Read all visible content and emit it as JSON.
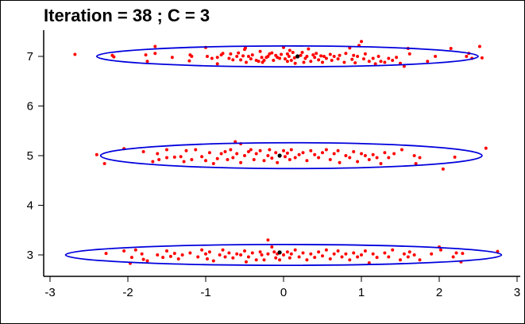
{
  "chart_data": {
    "type": "scatter",
    "title": "Iteration =  38 ; C =  3",
    "xlabel": "",
    "ylabel": "",
    "xlim": [
      -3,
      3
    ],
    "ylim": [
      2.6,
      7.5
    ],
    "x_ticks": [
      "-3",
      "-2",
      "-1",
      "0",
      "1",
      "2",
      "3"
    ],
    "y_ticks": [
      "3",
      "4",
      "5",
      "6",
      "7"
    ],
    "grid": false,
    "colors": {
      "points": "#ff0000",
      "centers": "#000000",
      "ellipses": "#0000dd",
      "frame": "#000000"
    },
    "clusters": [
      {
        "center": [
          0.18,
          7.0
        ],
        "ellipse": {
          "cx": 0.05,
          "cy": 7.0,
          "rx": 2.45,
          "ry": 0.21
        },
        "points": [
          [
            -2.68,
            7.04
          ],
          [
            -2.2,
            7.02
          ],
          [
            -2.18,
            6.99
          ],
          [
            -1.77,
            7.03
          ],
          [
            -1.75,
            6.9
          ],
          [
            -1.65,
            7.2
          ],
          [
            -1.65,
            7.06
          ],
          [
            -1.43,
            6.98
          ],
          [
            -1.21,
            6.91
          ],
          [
            -1.2,
            7.03
          ],
          [
            -1.18,
            7.0
          ],
          [
            -1.0,
            7.18
          ],
          [
            -0.98,
            7.0
          ],
          [
            -0.92,
            6.96
          ],
          [
            -0.85,
            6.98
          ],
          [
            -0.85,
            6.85
          ],
          [
            -0.8,
            7.03
          ],
          [
            -0.78,
            7.06
          ],
          [
            -0.7,
            6.96
          ],
          [
            -0.68,
            7.05
          ],
          [
            -0.65,
            6.93
          ],
          [
            -0.6,
            7.0
          ],
          [
            -0.58,
            7.07
          ],
          [
            -0.55,
            6.93
          ],
          [
            -0.52,
            7.01
          ],
          [
            -0.5,
            7.14
          ],
          [
            -0.49,
            7.17
          ],
          [
            -0.48,
            6.88
          ],
          [
            -0.45,
            7.0
          ],
          [
            -0.42,
            6.95
          ],
          [
            -0.4,
            7.03
          ],
          [
            -0.35,
            6.92
          ],
          [
            -0.32,
            6.9
          ],
          [
            -0.3,
            7.1
          ],
          [
            -0.28,
            6.98
          ],
          [
            -0.27,
            6.88
          ],
          [
            -0.25,
            6.92
          ],
          [
            -0.22,
            6.98
          ],
          [
            -0.2,
            7.0
          ],
          [
            -0.18,
            7.05
          ],
          [
            -0.15,
            7.07
          ],
          [
            -0.13,
            6.92
          ],
          [
            -0.1,
            7.02
          ],
          [
            -0.08,
            6.98
          ],
          [
            -0.05,
            6.96
          ],
          [
            -0.03,
            7.04
          ],
          [
            0.0,
            7.18
          ],
          [
            0.02,
            6.95
          ],
          [
            0.05,
            7.05
          ],
          [
            0.05,
            6.9
          ],
          [
            0.07,
            7.0
          ],
          [
            0.08,
            7.12
          ],
          [
            0.1,
            6.92
          ],
          [
            0.12,
            7.08
          ],
          [
            0.14,
            6.97
          ],
          [
            0.15,
            6.86
          ],
          [
            0.22,
            7.02
          ],
          [
            0.24,
            7.08
          ],
          [
            0.26,
            6.88
          ],
          [
            0.28,
            6.96
          ],
          [
            0.3,
            7.0
          ],
          [
            0.32,
            7.15
          ],
          [
            0.35,
            6.9
          ],
          [
            0.38,
            7.03
          ],
          [
            0.4,
            6.98
          ],
          [
            0.42,
            7.06
          ],
          [
            0.45,
            6.93
          ],
          [
            0.48,
            7.01
          ],
          [
            0.5,
            6.88
          ],
          [
            0.52,
            7.0
          ],
          [
            0.55,
            6.96
          ],
          [
            0.6,
            7.04
          ],
          [
            0.62,
            6.92
          ],
          [
            0.65,
            7.0
          ],
          [
            0.7,
            6.95
          ],
          [
            0.72,
            7.02
          ],
          [
            0.78,
            6.88
          ],
          [
            0.8,
            7.06
          ],
          [
            0.85,
            7.17
          ],
          [
            0.88,
            6.94
          ],
          [
            0.9,
            7.02
          ],
          [
            0.92,
            6.87
          ],
          [
            0.95,
            7.0
          ],
          [
            0.97,
            7.22
          ],
          [
            1.0,
            7.3
          ],
          [
            1.03,
            6.95
          ],
          [
            1.05,
            7.05
          ],
          [
            1.1,
            6.9
          ],
          [
            1.15,
            6.96
          ],
          [
            1.18,
            6.85
          ],
          [
            1.22,
            7.0
          ],
          [
            1.25,
            6.9
          ],
          [
            1.3,
            6.88
          ],
          [
            1.35,
            6.96
          ],
          [
            1.4,
            6.92
          ],
          [
            1.45,
            6.98
          ],
          [
            1.5,
            6.86
          ],
          [
            1.55,
            6.8
          ],
          [
            1.6,
            7.16
          ],
          [
            1.62,
            7.05
          ],
          [
            1.85,
            6.9
          ],
          [
            1.95,
            7.0
          ],
          [
            2.15,
            7.16
          ],
          [
            2.35,
            7.0
          ],
          [
            2.38,
            7.06
          ],
          [
            2.42,
            6.96
          ],
          [
            2.52,
            7.2
          ],
          [
            2.55,
            6.97
          ]
        ]
      },
      {
        "center": [
          -0.05,
          5.0
        ],
        "ellipse": {
          "cx": 0.1,
          "cy": 5.0,
          "rx": 2.45,
          "ry": 0.26
        },
        "points": [
          [
            -2.4,
            5.02
          ],
          [
            -2.3,
            4.84
          ],
          [
            -2.05,
            5.14
          ],
          [
            -1.8,
            5.08
          ],
          [
            -1.68,
            4.88
          ],
          [
            -1.62,
            5.04
          ],
          [
            -1.6,
            4.92
          ],
          [
            -1.5,
            5.12
          ],
          [
            -1.5,
            4.96
          ],
          [
            -1.4,
            4.97
          ],
          [
            -1.32,
            4.98
          ],
          [
            -1.28,
            4.88
          ],
          [
            -1.25,
            5.1
          ],
          [
            -1.18,
            4.92
          ],
          [
            -1.13,
            5.12
          ],
          [
            -1.05,
            4.98
          ],
          [
            -1.0,
            4.9
          ],
          [
            -0.95,
            5.06
          ],
          [
            -0.9,
            4.84
          ],
          [
            -0.85,
            4.94
          ],
          [
            -0.8,
            5.04
          ],
          [
            -0.75,
            5.08
          ],
          [
            -0.72,
            4.92
          ],
          [
            -0.68,
            5.12
          ],
          [
            -0.65,
            4.96
          ],
          [
            -0.6,
            5.04
          ],
          [
            -0.55,
            4.86
          ],
          [
            -0.5,
            5.0
          ],
          [
            -0.45,
            5.08
          ],
          [
            -0.42,
            5.12
          ],
          [
            -0.38,
            4.92
          ],
          [
            -0.35,
            5.04
          ],
          [
            -0.3,
            5.1
          ],
          [
            -0.25,
            4.9
          ],
          [
            -0.2,
            5.0
          ],
          [
            -0.18,
            5.12
          ],
          [
            -0.15,
            4.95
          ],
          [
            -0.1,
            5.06
          ],
          [
            -0.08,
            4.86
          ],
          [
            0.0,
            5.1
          ],
          [
            0.02,
            4.98
          ],
          [
            0.05,
            5.05
          ],
          [
            0.08,
            4.92
          ],
          [
            0.1,
            5.12
          ],
          [
            0.15,
            4.96
          ],
          [
            0.2,
            5.02
          ],
          [
            0.25,
            5.06
          ],
          [
            0.3,
            4.9
          ],
          [
            0.35,
            5.1
          ],
          [
            0.4,
            5.02
          ],
          [
            0.45,
            4.96
          ],
          [
            0.5,
            5.06
          ],
          [
            0.55,
            5.12
          ],
          [
            0.6,
            4.92
          ],
          [
            0.65,
            5.04
          ],
          [
            0.7,
            5.1
          ],
          [
            0.72,
            4.86
          ],
          [
            0.8,
            5.0
          ],
          [
            0.85,
            4.96
          ],
          [
            0.9,
            5.08
          ],
          [
            0.95,
            4.88
          ],
          [
            1.0,
            5.04
          ],
          [
            1.05,
            5.0
          ],
          [
            1.1,
            4.92
          ],
          [
            1.15,
            5.02
          ],
          [
            1.2,
            4.96
          ],
          [
            1.25,
            4.84
          ],
          [
            1.3,
            5.06
          ],
          [
            1.35,
            4.96
          ],
          [
            1.42,
            5.04
          ],
          [
            1.52,
            5.12
          ],
          [
            1.68,
            5.0
          ],
          [
            1.75,
            4.96
          ],
          [
            1.7,
            4.84
          ],
          [
            2.05,
            4.73
          ],
          [
            2.2,
            4.97
          ],
          [
            2.6,
            5.15
          ],
          [
            -0.62,
            5.28
          ],
          [
            -0.55,
            5.24
          ]
        ]
      },
      {
        "center": [
          -0.05,
          3.05
        ],
        "ellipse": {
          "cx": 0.0,
          "cy": 3.0,
          "rx": 2.8,
          "ry": 0.21
        },
        "points": [
          [
            -2.28,
            3.03
          ],
          [
            -2.05,
            3.08
          ],
          [
            -1.97,
            2.83
          ],
          [
            -1.95,
            2.95
          ],
          [
            -1.9,
            3.1
          ],
          [
            -1.82,
            3.02
          ],
          [
            -1.8,
            2.91
          ],
          [
            -1.75,
            2.88
          ],
          [
            -1.62,
            3.0
          ],
          [
            -1.55,
            2.95
          ],
          [
            -1.5,
            3.08
          ],
          [
            -1.45,
            2.97
          ],
          [
            -1.4,
            3.03
          ],
          [
            -1.35,
            2.92
          ],
          [
            -1.3,
            3.0
          ],
          [
            -1.2,
            3.04
          ],
          [
            -1.1,
            2.96
          ],
          [
            -1.05,
            3.1
          ],
          [
            -1.0,
            3.02
          ],
          [
            -0.98,
            2.92
          ],
          [
            -0.95,
            3.06
          ],
          [
            -0.9,
            2.88
          ],
          [
            -0.82,
            3.0
          ],
          [
            -0.78,
            3.1
          ],
          [
            -0.75,
            2.96
          ],
          [
            -0.7,
            3.04
          ],
          [
            -0.65,
            2.94
          ],
          [
            -0.6,
            3.02
          ],
          [
            -0.55,
            3.0
          ],
          [
            -0.5,
            3.08
          ],
          [
            -0.48,
            2.86
          ],
          [
            -0.45,
            2.96
          ],
          [
            -0.4,
            3.04
          ],
          [
            -0.35,
            2.9
          ],
          [
            -0.3,
            3.06
          ],
          [
            -0.28,
            3.0
          ],
          [
            -0.25,
            2.9
          ],
          [
            -0.2,
            3.02
          ],
          [
            -0.15,
            3.16
          ],
          [
            -0.12,
            3.06
          ],
          [
            -0.1,
            2.94
          ],
          [
            -0.08,
            3.02
          ],
          [
            -0.05,
            2.9
          ],
          [
            0.0,
            3.0
          ],
          [
            0.05,
            3.06
          ],
          [
            0.08,
            2.94
          ],
          [
            0.1,
            3.02
          ],
          [
            0.15,
            3.1
          ],
          [
            0.2,
            2.96
          ],
          [
            0.25,
            3.04
          ],
          [
            0.3,
            2.9
          ],
          [
            0.35,
            3.02
          ],
          [
            0.4,
            2.95
          ],
          [
            0.45,
            3.06
          ],
          [
            0.5,
            2.98
          ],
          [
            0.55,
            3.1
          ],
          [
            0.6,
            2.92
          ],
          [
            0.65,
            3.02
          ],
          [
            0.7,
            3.08
          ],
          [
            0.75,
            2.96
          ],
          [
            0.8,
            3.02
          ],
          [
            0.85,
            2.9
          ],
          [
            0.9,
            3.04
          ],
          [
            0.95,
            2.96
          ],
          [
            1.0,
            3.0
          ],
          [
            1.05,
            3.08
          ],
          [
            1.1,
            2.84
          ],
          [
            1.15,
            3.02
          ],
          [
            1.2,
            2.95
          ],
          [
            1.3,
            3.04
          ],
          [
            1.35,
            2.96
          ],
          [
            1.4,
            3.1
          ],
          [
            1.5,
            2.9
          ],
          [
            1.55,
            3.02
          ],
          [
            1.6,
            2.96
          ],
          [
            1.62,
            3.06
          ],
          [
            1.68,
            3.0
          ],
          [
            1.75,
            2.9
          ],
          [
            1.9,
            3.02
          ],
          [
            2.0,
            3.16
          ],
          [
            2.02,
            3.1
          ],
          [
            2.18,
            2.96
          ],
          [
            2.22,
            3.04
          ],
          [
            2.28,
            2.86
          ],
          [
            2.3,
            3.03
          ],
          [
            2.75,
            3.07
          ],
          [
            -0.2,
            3.3
          ]
        ]
      }
    ]
  }
}
